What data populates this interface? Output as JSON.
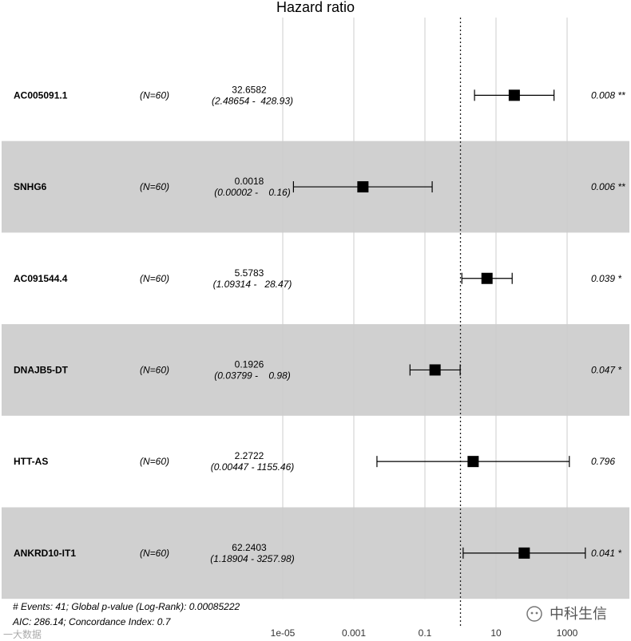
{
  "title": "Hazard ratio",
  "chart_data": {
    "type": "forest",
    "title": "Hazard ratio",
    "x_scale": "log10",
    "xlim": [
      1e-06,
      10000
    ],
    "x_ticks": [
      1e-05,
      0.001,
      0.1,
      10,
      1000
    ],
    "x_tick_labels": [
      "1e-05",
      "0.001",
      "0.1",
      "10",
      "1000"
    ],
    "reference_line": 1,
    "rows": [
      {
        "variable": "AC005091.1",
        "n": "(N=60)",
        "hr_label": "32.6582",
        "ci_label": "(2.48654 -  428.93)",
        "hr": 32.6582,
        "lower": 2.48654,
        "upper": 428.93,
        "p_label": "0.008 **",
        "shaded": false
      },
      {
        "variable": "SNHG6",
        "n": "(N=60)",
        "hr_label": "0.0018",
        "ci_label": "(0.00002 -    0.16)",
        "hr": 0.0018,
        "lower": 2e-05,
        "upper": 0.16,
        "p_label": "0.006 **",
        "shaded": true
      },
      {
        "variable": "AC091544.4",
        "n": "(N=60)",
        "hr_label": "5.5783",
        "ci_label": "(1.09314 -   28.47)",
        "hr": 5.5783,
        "lower": 1.09314,
        "upper": 28.47,
        "p_label": "0.039 *",
        "shaded": false
      },
      {
        "variable": "DNAJB5-DT",
        "n": "(N=60)",
        "hr_label": "0.1926",
        "ci_label": "(0.03799 -    0.98)",
        "hr": 0.1926,
        "lower": 0.03799,
        "upper": 0.98,
        "p_label": "0.047 *",
        "shaded": true
      },
      {
        "variable": "HTT-AS",
        "n": "(N=60)",
        "hr_label": "2.2722",
        "ci_label": "(0.00447 - 1155.46)",
        "hr": 2.2722,
        "lower": 0.00447,
        "upper": 1155.46,
        "p_label": "0.796",
        "shaded": false
      },
      {
        "variable": "ANKRD10-IT1",
        "n": "(N=60)",
        "hr_label": "62.2403",
        "ci_label": "(1.18904 - 3257.98)",
        "hr": 62.2403,
        "lower": 1.18904,
        "upper": 3257.98,
        "p_label": "0.041 *",
        "shaded": true
      }
    ],
    "footer": [
      "# Events: 41; Global p-value (Log-Rank): 0.00085222",
      "AIC: 286.14; Concordance Index: 0.7"
    ],
    "colors": {
      "shade": "#d0d0d0",
      "grid": "#cccccc",
      "marker": "#000000"
    }
  },
  "watermark": {
    "brand": "中科生信",
    "left": "一大数据"
  }
}
